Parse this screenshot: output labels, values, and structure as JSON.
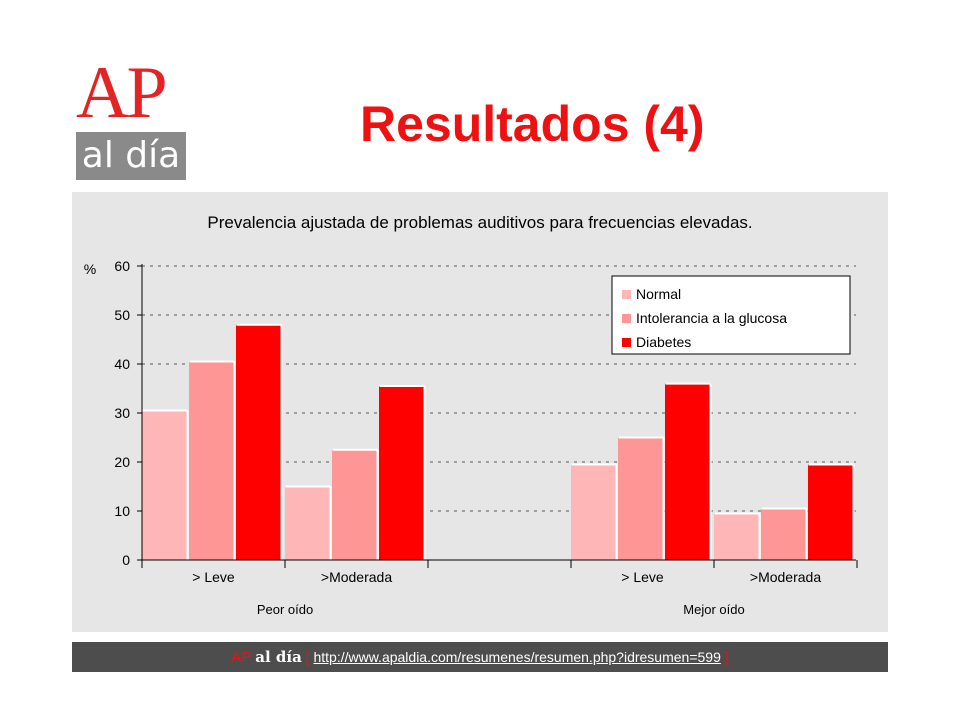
{
  "logo": {
    "top_text": "AP",
    "bottom_text": "al día"
  },
  "page": {
    "title": "Resultados (4)"
  },
  "footer": {
    "brand_ap": "AP",
    "brand_aldia": "al día",
    "open_bracket": "[",
    "link_text": "http://www.apaldia.com/resumenes/resumen.php?idresumen=599",
    "close_bracket": "]"
  },
  "colors": {
    "normal": "#ffb6b6",
    "intolerancia": "#ff9696",
    "diabetes": "#ff0000",
    "accent": "#ee1111"
  },
  "chart_data": {
    "type": "bar",
    "title": "Prevalencia ajustada de problemas auditivos para frecuencias elevadas.",
    "ylabel": "%",
    "ylim": [
      0,
      60
    ],
    "yticks": [
      0,
      10,
      20,
      30,
      40,
      50,
      60
    ],
    "grid": true,
    "legend_position": "top-right",
    "groups": [
      "Peor oído",
      "Mejor oído"
    ],
    "categories": [
      "> Leve",
      ">Moderada",
      "> Leve",
      ">Moderada"
    ],
    "series": [
      {
        "name": "Normal",
        "values": [
          30.5,
          15,
          19.5,
          9.5
        ]
      },
      {
        "name": "Intolerancia a la glucosa",
        "values": [
          40.5,
          22.5,
          25,
          10.5
        ]
      },
      {
        "name": "Diabetes",
        "values": [
          48,
          35.5,
          36,
          19.5
        ]
      }
    ]
  }
}
